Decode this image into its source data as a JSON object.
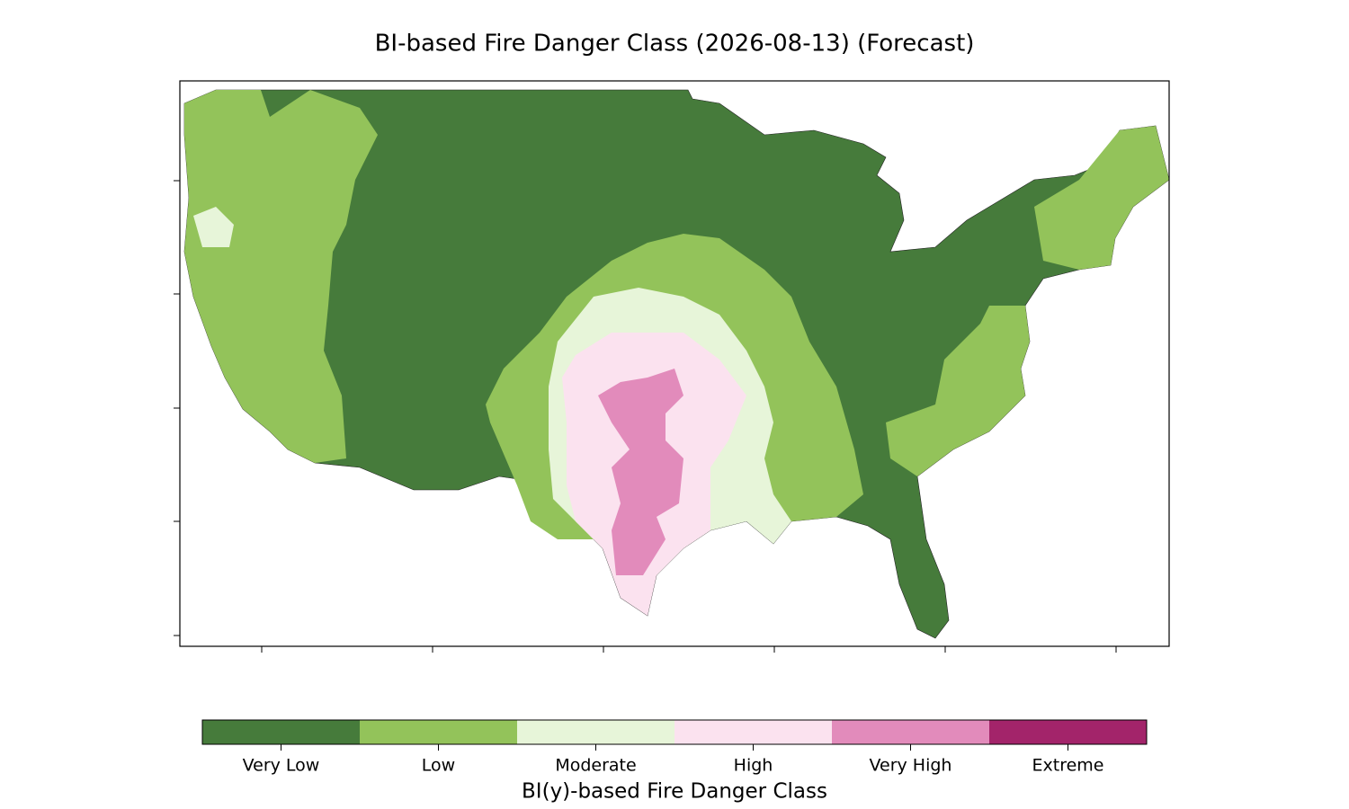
{
  "title": "BI-based Fire Danger Class (2026-08-13) (Forecast)",
  "colorbar": {
    "label": "BI(y)-based Fire Danger Class",
    "classes": [
      {
        "name": "Very Low",
        "color": "#467b3b"
      },
      {
        "name": "Low",
        "color": "#93c35a"
      },
      {
        "name": "Moderate",
        "color": "#e7f5d9"
      },
      {
        "name": "High",
        "color": "#fbe2ef"
      },
      {
        "name": "Very High",
        "color": "#e28bbb"
      },
      {
        "name": "Extreme",
        "color": "#a3246a"
      }
    ]
  }
}
